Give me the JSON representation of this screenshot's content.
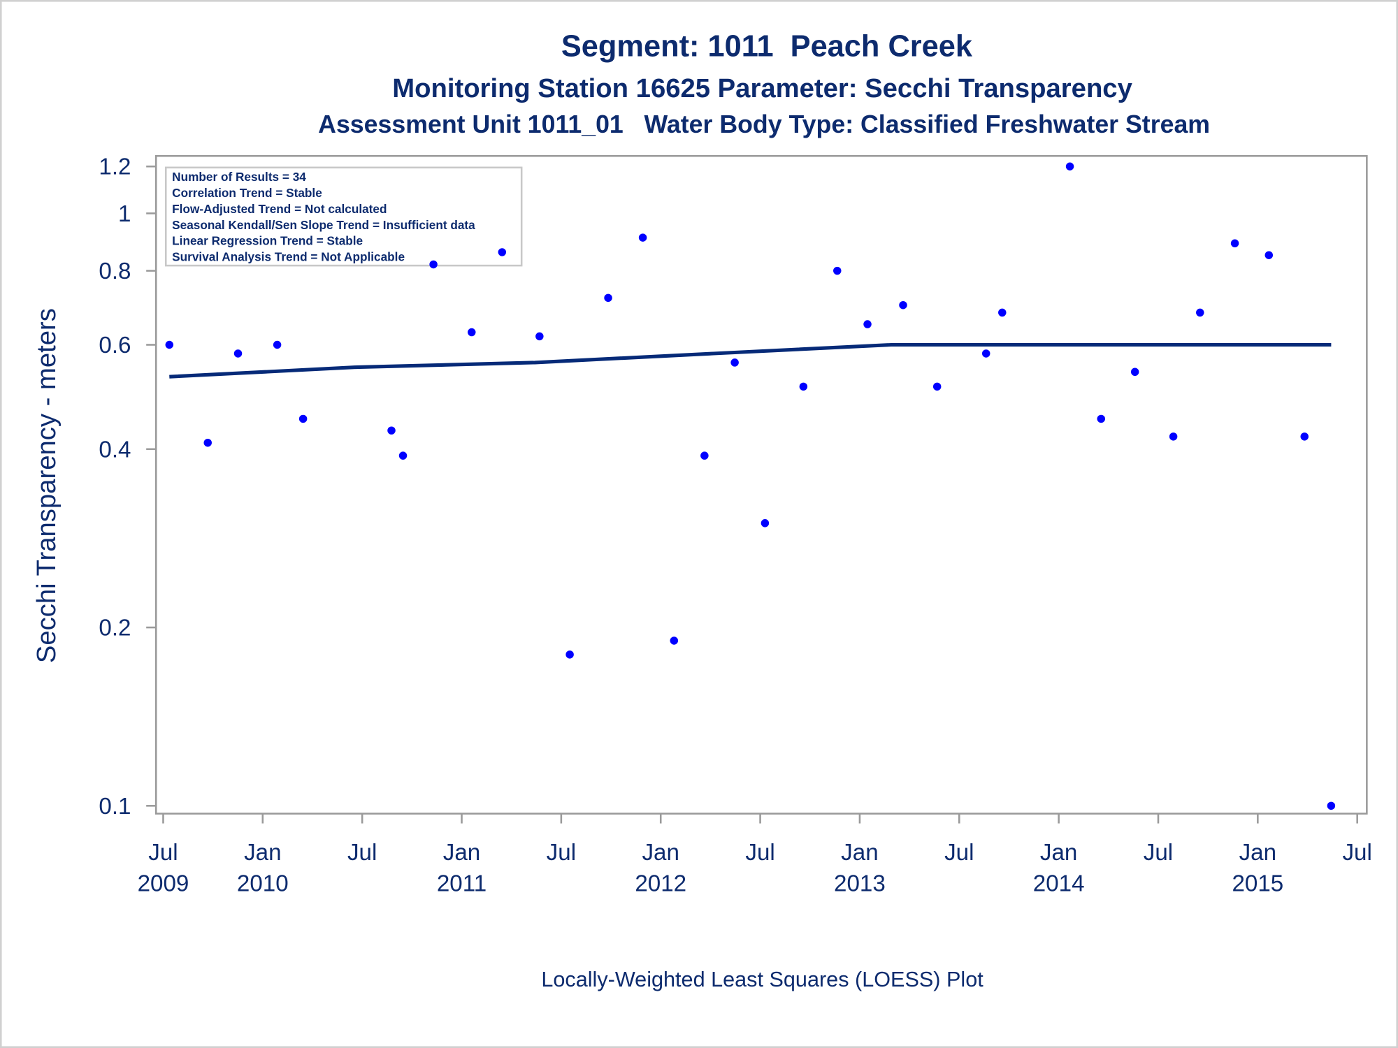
{
  "chart_data": {
    "type": "scatter",
    "title": "Segment: 1011  Peach Creek",
    "subtitle": "Monitoring Station 16625 Parameter: Secchi Transparency",
    "subtitle2": "Assessment Unit 1011_01   Water Body Type: Classified Freshwater Stream",
    "ylabel": "Secchi Transparency - meters",
    "footnote": "Locally-Weighted Least Squares (LOESS) Plot",
    "annotations": [
      "Number of Results = 34",
      "Correlation Trend = Stable",
      "Flow-Adjusted Trend = Not calculated",
      "Seasonal Kendall/Sen Slope Trend = Insufficient data",
      "Linear Regression Trend = Stable",
      "Survival Analysis Trend = Not Applicable"
    ],
    "log_y": true,
    "ylim": [
      0.097,
      1.25
    ],
    "yticks": [
      0.1,
      0.2,
      0.4,
      0.6,
      0.8,
      1,
      1.2
    ],
    "xlim": [
      2009.464,
      2015.548
    ],
    "xticks": [
      {
        "value": 2009.5,
        "label": "Jul 2009"
      },
      {
        "value": 2010,
        "label": "Jan 2010"
      },
      {
        "value": 2010.5,
        "label": "Jul"
      },
      {
        "value": 2011,
        "label": "Jan 2011"
      },
      {
        "value": 2011.5,
        "label": "Jul"
      },
      {
        "value": 2012,
        "label": "Jan 2012"
      },
      {
        "value": 2012.5,
        "label": "Jul"
      },
      {
        "value": 2013,
        "label": "Jan 2013"
      },
      {
        "value": 2013.5,
        "label": "Jul"
      },
      {
        "value": 2014,
        "label": "Jan 2014"
      },
      {
        "value": 2014.5,
        "label": "Jul"
      },
      {
        "value": 2015,
        "label": "Jan 2015"
      },
      {
        "value": 2015.5,
        "label": "Jul"
      }
    ],
    "series": [
      {
        "mode": "markers",
        "color": "#0000ff",
        "x": [
          2009.531,
          2009.724,
          2009.876,
          2010.073,
          2010.203,
          2010.647,
          2010.705,
          2010.858,
          2011.05,
          2011.203,
          2011.391,
          2011.543,
          2011.736,
          2011.91,
          2012.067,
          2012.22,
          2012.372,
          2012.524,
          2012.717,
          2012.887,
          2013.039,
          2013.218,
          2013.389,
          2013.635,
          2013.716,
          2014.056,
          2014.213,
          2014.383,
          2014.576,
          2014.71,
          2014.885,
          2015.056,
          2015.235,
          2015.369
        ],
        "values": [
          0.6,
          0.41,
          0.58,
          0.6,
          0.45,
          0.43,
          0.39,
          0.82,
          0.63,
          0.86,
          0.62,
          0.18,
          0.72,
          0.91,
          0.19,
          0.39,
          0.56,
          0.3,
          0.51,
          0.8,
          0.65,
          0.7,
          0.51,
          0.58,
          0.68,
          1.2,
          0.45,
          0.54,
          0.42,
          0.68,
          0.89,
          0.85,
          0.42,
          0.1
        ]
      },
      {
        "mode": "line",
        "color": "#062a78",
        "x": [
          2009.531,
          2010.472,
          2011.368,
          2012.264,
          2013.159,
          2014.503,
          2015.369
        ],
        "values": [
          0.53,
          0.55,
          0.56,
          0.58,
          0.6,
          0.6,
          0.6
        ]
      }
    ]
  }
}
